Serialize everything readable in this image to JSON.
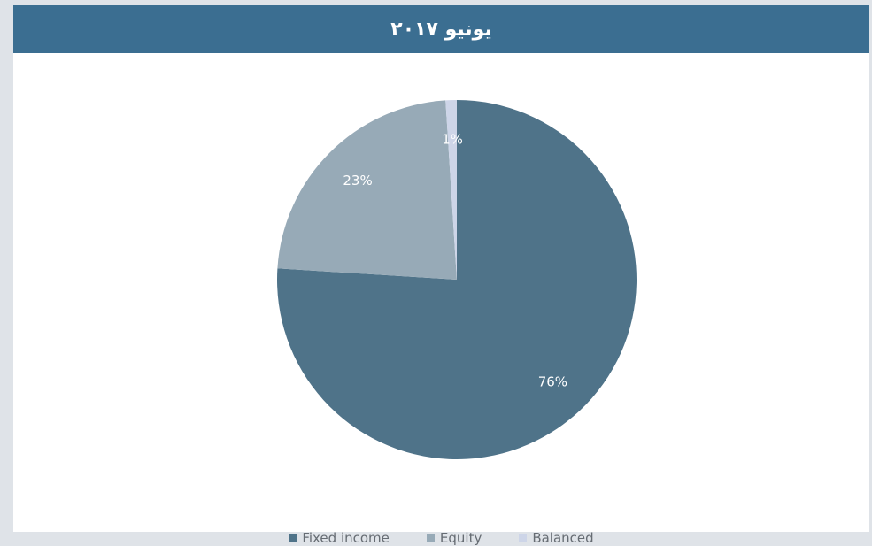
{
  "header": {
    "title": "يونيو ٢٠١٧"
  },
  "chart_data": {
    "type": "pie",
    "title": "يونيو ٢٠١٧",
    "categories": [
      "Fixed income",
      "Equity",
      "Balanced"
    ],
    "values": [
      76,
      23,
      1
    ],
    "labels": [
      "76%",
      "23%",
      "1%"
    ],
    "colors": [
      "#4f7389",
      "#97aab7",
      "#cdd5e8"
    ],
    "legend_position": "bottom"
  },
  "colors": {
    "header_bg": "#3b6e91",
    "page_bg": "#dfe3e8",
    "panel_bg": "#ffffff",
    "label_text": "#ffffff"
  }
}
